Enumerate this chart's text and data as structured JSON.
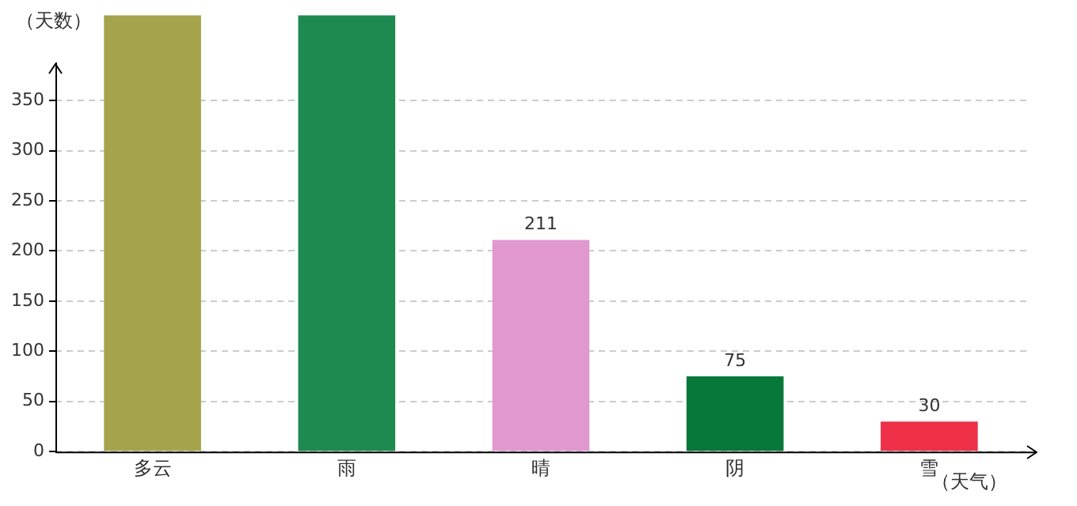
{
  "chart_data": {
    "type": "bar",
    "xlabel": "（天气）",
    "ylabel": "（天数）",
    "categories": [
      "多云",
      "雨",
      "晴",
      "阴",
      "雪"
    ],
    "values": [
      435,
      435,
      211,
      75,
      30
    ],
    "colors": [
      "#a5a44c",
      "#1e8a50",
      "#e098cf",
      "#087839",
      "#ee3048"
    ],
    "value_labels": [
      null,
      null,
      "211",
      "75",
      "30"
    ],
    "ylim": [
      0,
      435
    ],
    "yticks": [
      0,
      50,
      100,
      150,
      200,
      250,
      300,
      350
    ],
    "grid": "y",
    "legend": false
  }
}
